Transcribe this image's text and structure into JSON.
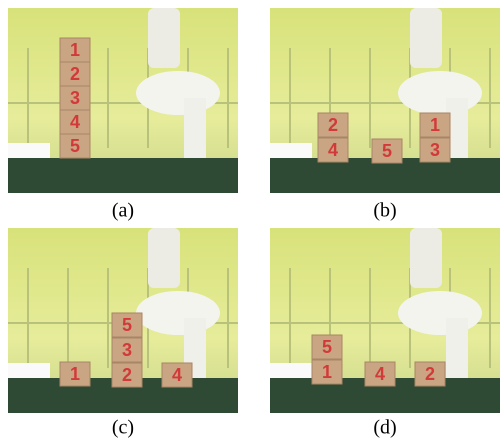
{
  "panels": [
    {
      "caption": "(a)",
      "blocks": [
        {
          "label": "1"
        },
        {
          "label": "2"
        },
        {
          "label": "3"
        },
        {
          "label": "4"
        },
        {
          "label": "5"
        }
      ]
    },
    {
      "caption": "(b)",
      "blocks": [
        {
          "label": "2"
        },
        {
          "label": "4"
        },
        {
          "label": "5"
        },
        {
          "label": "1"
        },
        {
          "label": "3"
        }
      ]
    },
    {
      "caption": "(c)",
      "blocks": [
        {
          "label": "1"
        },
        {
          "label": "5"
        },
        {
          "label": "3"
        },
        {
          "label": "2"
        },
        {
          "label": "4"
        }
      ]
    },
    {
      "caption": "(d)",
      "blocks": [
        {
          "label": "5"
        },
        {
          "label": "1"
        },
        {
          "label": "4"
        },
        {
          "label": "2"
        }
      ]
    }
  ]
}
